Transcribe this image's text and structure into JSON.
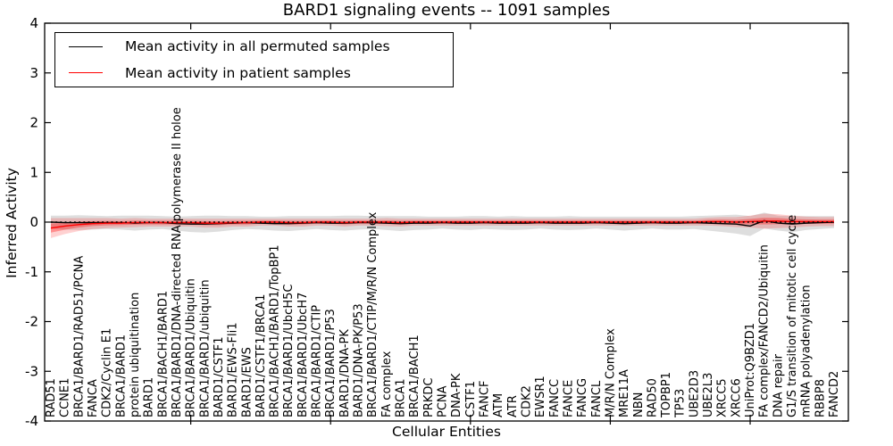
{
  "chart_data": {
    "type": "line",
    "title": "BARD1 signaling events -- 1091 samples",
    "xlabel": "Cellular Entities",
    "ylabel": "Inferred Activity",
    "ylim": [
      -4,
      4
    ],
    "yticks": [
      "-4",
      "-3",
      "-2",
      "-1",
      "0",
      "1",
      "2",
      "3",
      "4"
    ],
    "ytick_values": [
      -4,
      -3,
      -2,
      -1,
      0,
      1,
      2,
      3,
      4
    ],
    "grid": false,
    "legend_position": "upper left",
    "zero_line": {
      "style": "dotted",
      "color": "#000000",
      "y": 0
    },
    "major_x_tick_category_indices": [
      10,
      20,
      30,
      40,
      50
    ],
    "categories": [
      "RAD51",
      "CCNE1",
      "BRCA1/BARD1/RAD51/PCNA",
      "FANCA",
      "CDK2/Cyclin E1",
      "BRCA1/BARD1",
      "protein ubiquitination",
      "BARD1",
      "BRCA1/BACH1/BARD1",
      "BRCA1/BARD1/DNA-directed RNA polymerase II holoe",
      "BRCA1/BARD1/Ubiquitin",
      "BRCA1/BARD1/ubiquitin",
      "BARD1/CSTF1",
      "BARD1/EWS-Fli1",
      "BARD1/EWS",
      "BARD1/CSTF1/BRCA1",
      "BRCA1/BACH1/BARD1/TopBP1",
      "BRCA1/BARD1/UbcH5C",
      "BRCA1/BARD1/UbcH7",
      "BRCA1/BARD1/CTIP",
      "BRCA1/BARD1/P53",
      "BARD1/DNA-PK",
      "BARD1/DNA-PK/P53",
      "BRCA1/BARD1/CTIP/M/R/N Complex",
      "FA complex",
      "BRCA1",
      "BRCA1/BACH1",
      "PRKDC",
      "PCNA",
      "DNA-PK",
      "CSTF1",
      "FANCF",
      "ATM",
      "ATR",
      "CDK2",
      "EWSR1",
      "FANCC",
      "FANCE",
      "FANCG",
      "FANCL",
      "M/R/N Complex",
      "MRE11A",
      "NBN",
      "RAD50",
      "TOPBP1",
      "TP53",
      "UBE2D3",
      "UBE2L3",
      "XRCC5",
      "XRCC6",
      "UniProt:Q9BZD1",
      "FA complex/FANCD2/Ubiquitin",
      "DNA repair",
      "G1/S transition of mitotic cell cycle",
      "mRNA polyadenylation",
      "RBBP8",
      "FANCD2"
    ],
    "series": [
      {
        "name": "Mean activity in all permuted samples",
        "color": "#000000",
        "band_color": "#000000",
        "band_alpha": 0.13,
        "values": [
          0.0,
          -0.01,
          -0.01,
          -0.01,
          -0.01,
          -0.01,
          -0.02,
          -0.01,
          -0.01,
          -0.03,
          -0.04,
          -0.04,
          -0.03,
          -0.02,
          -0.01,
          -0.02,
          -0.03,
          -0.03,
          -0.02,
          -0.01,
          -0.02,
          -0.02,
          -0.01,
          -0.01,
          -0.02,
          -0.03,
          -0.02,
          -0.02,
          -0.01,
          -0.02,
          -0.02,
          -0.01,
          -0.02,
          -0.02,
          -0.02,
          -0.01,
          -0.02,
          -0.02,
          -0.02,
          -0.01,
          -0.02,
          -0.03,
          -0.02,
          -0.01,
          -0.02,
          -0.02,
          -0.01,
          -0.02,
          -0.03,
          -0.04,
          -0.08,
          0.03,
          -0.02,
          -0.04,
          -0.02,
          -0.01,
          0.0
        ],
        "band_halfwidth": [
          0.13,
          0.14,
          0.15,
          0.14,
          0.13,
          0.14,
          0.15,
          0.14,
          0.13,
          0.14,
          0.16,
          0.17,
          0.16,
          0.14,
          0.13,
          0.13,
          0.14,
          0.15,
          0.14,
          0.13,
          0.14,
          0.15,
          0.14,
          0.13,
          0.14,
          0.15,
          0.14,
          0.13,
          0.12,
          0.13,
          0.14,
          0.13,
          0.13,
          0.14,
          0.13,
          0.12,
          0.13,
          0.14,
          0.13,
          0.12,
          0.13,
          0.14,
          0.13,
          0.12,
          0.13,
          0.13,
          0.13,
          0.15,
          0.17,
          0.19,
          0.2,
          0.16,
          0.15,
          0.16,
          0.14,
          0.13,
          0.12
        ]
      },
      {
        "name": "Mean activity in patient samples",
        "color": "#ff0000",
        "band_color": "#ff0000",
        "band_alpha_outer": 0.18,
        "band_alpha_inner": 0.32,
        "values": [
          -0.12,
          -0.08,
          -0.05,
          -0.03,
          -0.02,
          -0.02,
          -0.01,
          -0.01,
          -0.01,
          -0.01,
          -0.01,
          -0.02,
          -0.02,
          -0.01,
          -0.01,
          0.0,
          0.0,
          -0.01,
          -0.01,
          0.0,
          0.0,
          -0.01,
          0.0,
          0.0,
          0.0,
          -0.01,
          0.0,
          0.0,
          0.0,
          0.0,
          0.0,
          0.0,
          0.0,
          0.0,
          0.0,
          0.0,
          0.0,
          0.0,
          0.0,
          0.0,
          0.0,
          0.0,
          0.0,
          0.0,
          0.0,
          0.0,
          0.0,
          0.01,
          0.01,
          0.0,
          0.01,
          0.02,
          0.02,
          0.01,
          0.01,
          0.01,
          0.01
        ],
        "band_halfwidth": [
          0.2,
          0.16,
          0.13,
          0.11,
          0.1,
          0.09,
          0.09,
          0.08,
          0.08,
          0.08,
          0.08,
          0.09,
          0.09,
          0.08,
          0.08,
          0.07,
          0.07,
          0.08,
          0.08,
          0.07,
          0.07,
          0.08,
          0.07,
          0.07,
          0.08,
          0.08,
          0.07,
          0.07,
          0.07,
          0.07,
          0.07,
          0.07,
          0.07,
          0.07,
          0.07,
          0.07,
          0.07,
          0.07,
          0.07,
          0.07,
          0.07,
          0.07,
          0.07,
          0.07,
          0.07,
          0.07,
          0.07,
          0.08,
          0.09,
          0.1,
          0.12,
          0.15,
          0.14,
          0.12,
          0.1,
          0.09,
          0.09
        ]
      }
    ]
  }
}
